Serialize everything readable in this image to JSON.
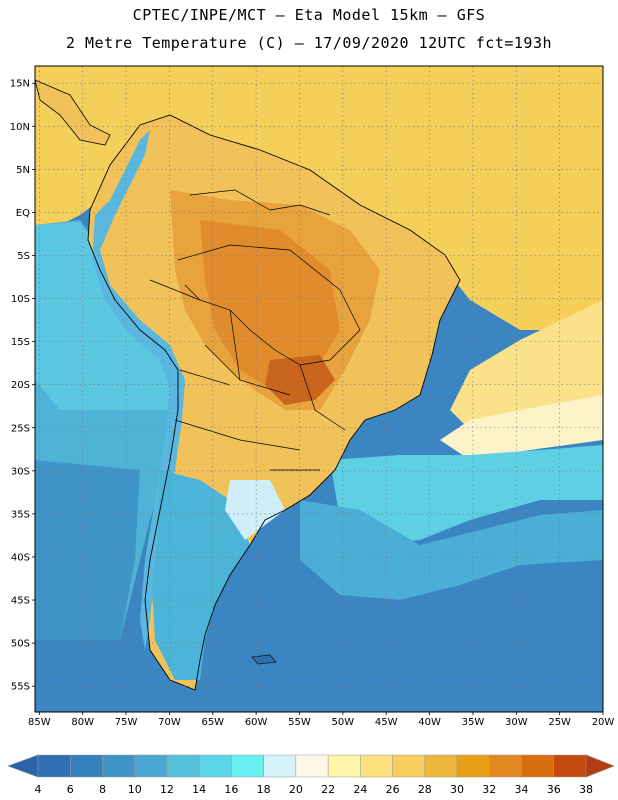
{
  "title": {
    "line1": "CPTEC/INPE/MCT –  Eta Model 15km – GFS",
    "line2": "2 Metre Temperature (C) – 17/09/2020 12UTC fct=193h"
  },
  "map": {
    "lat_labels": [
      "15N",
      "10N",
      "5N",
      "EQ",
      "5S",
      "10S",
      "15S",
      "20S",
      "25S",
      "30S",
      "35S",
      "40S",
      "45S",
      "50S",
      "55S"
    ],
    "lon_labels": [
      "85W",
      "80W",
      "75W",
      "70W",
      "65W",
      "60W",
      "55W",
      "50W",
      "45W",
      "40W",
      "35W",
      "30W",
      "25W",
      "20W"
    ],
    "lat_range": [
      17,
      -58
    ],
    "lon_range": [
      -85.5,
      -20
    ],
    "ocean_color": "#3a8cc8",
    "land_warm_color": "#e8a030"
  },
  "colorbar": {
    "labels": [
      "4",
      "6",
      "8",
      "10",
      "12",
      "14",
      "16",
      "18",
      "20",
      "22",
      "24",
      "26",
      "28",
      "30",
      "32",
      "34",
      "36",
      "38"
    ],
    "colors": [
      "#2f70b3",
      "#3580bd",
      "#3f95c8",
      "#4aa9d3",
      "#55c1dc",
      "#5cd6e6",
      "#66f0f2",
      "#d3f2fa",
      "#fff8e6",
      "#fef7a9",
      "#fbe27e",
      "#f6cf5c",
      "#eeb73c",
      "#e8a017",
      "#e38922",
      "#d96e11",
      "#c34b10"
    ],
    "left_arrow_color": "#2a63a8",
    "right_arrow_color": "#b33c10"
  }
}
